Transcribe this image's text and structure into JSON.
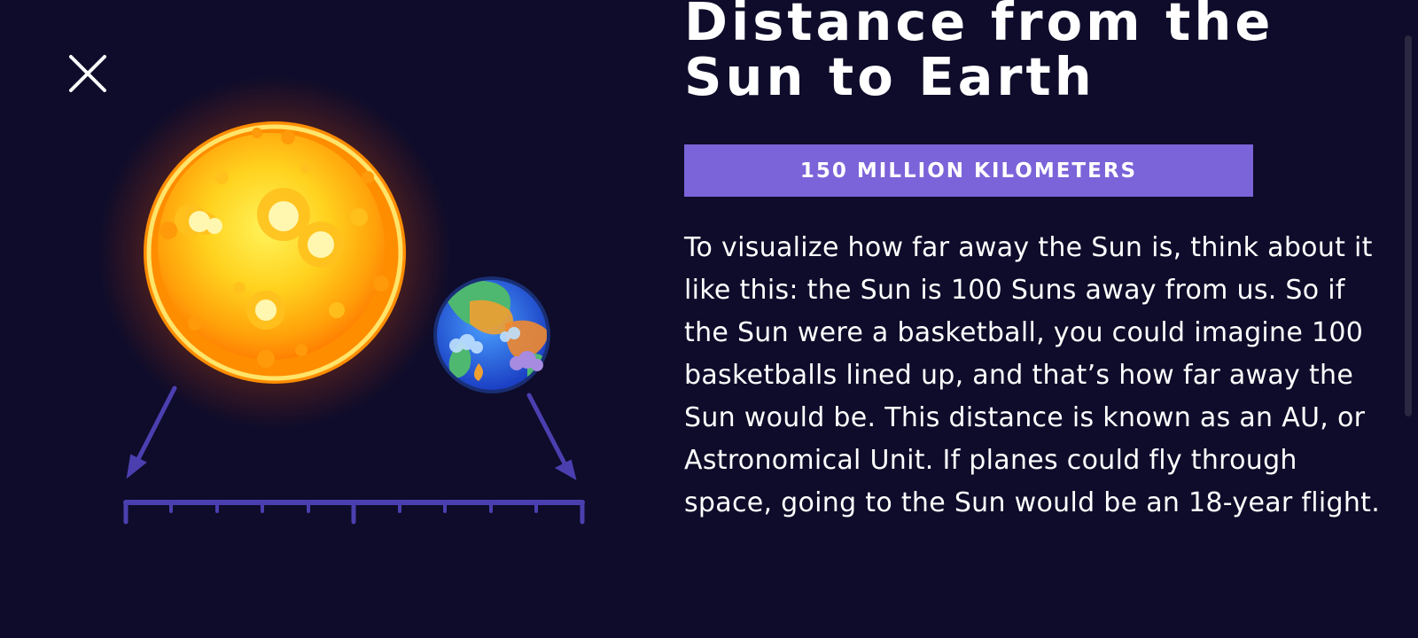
{
  "article": {
    "title": "Distance from the Sun to Earth",
    "distance_badge": "150 MILLION KILOMETERS",
    "body": "To visualize how far away the Sun is, think about it like this: the Sun is 100 Suns away from us. So if the Sun were a basketball, you could imagine 100 basketballs lined up, and that’s how far away the Sun would be. This distance is known as an AU, or Astronomical Unit. If planes could fly through space, going to the Sun would be an 18-year flight."
  },
  "icons": {
    "close": "close-icon",
    "sun": "sun-illustration",
    "earth": "earth-illustration"
  },
  "colors": {
    "background": "#0e0c2a",
    "accent": "#7b63d9",
    "ruler": "#4b3fb0",
    "text": "#ffffff"
  }
}
